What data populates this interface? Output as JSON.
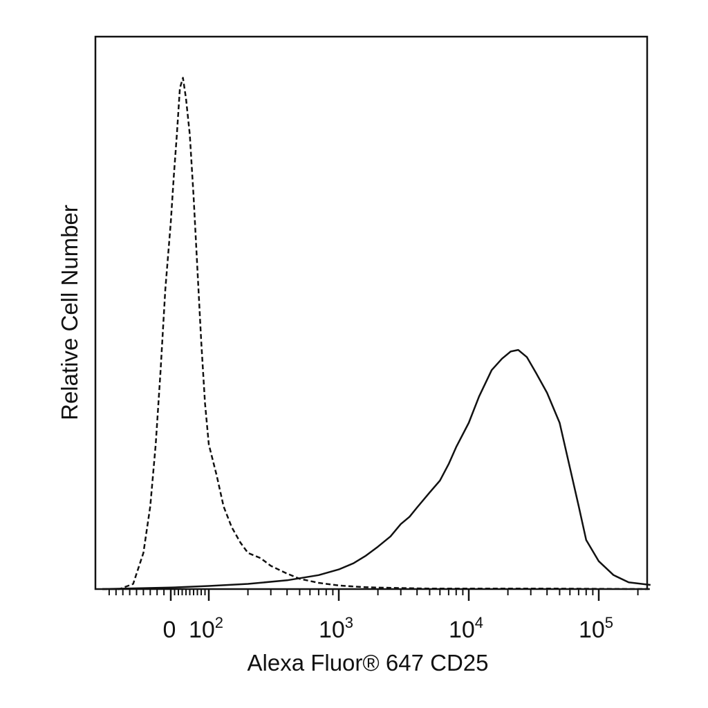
{
  "chart_data": {
    "type": "line",
    "title": "",
    "xlabel": "Alexa Fluor® 647 CD25",
    "ylabel": "Relative Cell Number",
    "x_scale": "biexponential (flow cytometry)",
    "x_tick_labels": [
      {
        "value": 0,
        "base": "0",
        "exp": ""
      },
      {
        "value": 100,
        "base": "10",
        "exp": "2"
      },
      {
        "value": 1000,
        "base": "10",
        "exp": "3"
      },
      {
        "value": 10000,
        "base": "10",
        "exp": "4"
      },
      {
        "value": 100000,
        "base": "10",
        "exp": "5"
      }
    ],
    "xlim": [
      -100,
      250000
    ],
    "ylim": [
      0,
      100
    ],
    "grid": false,
    "legend": "none",
    "series": [
      {
        "style": "dashed",
        "color": "#111111",
        "x": [
          -100,
          -75,
          -55,
          -40,
          -30,
          -22,
          -15,
          -8,
          0,
          8,
          16,
          24,
          32,
          40,
          50,
          60,
          70,
          80,
          90,
          100,
          115,
          130,
          150,
          175,
          200,
          250,
          300,
          400,
          500,
          700,
          1000,
          1500,
          2000,
          3000,
          5000,
          10000,
          50000,
          250000
        ],
        "y": [
          0,
          0,
          1,
          7,
          16,
          28,
          42,
          58,
          71,
          80,
          88,
          97,
          99,
          95,
          88,
          76,
          62,
          48,
          36,
          28,
          22,
          16,
          12,
          9,
          7,
          6,
          4.5,
          3,
          2,
          1.2,
          0.7,
          0.4,
          0.3,
          0.2,
          0.1,
          0.1,
          0.1,
          0
        ]
      },
      {
        "style": "solid",
        "color": "#111111",
        "x": [
          -100,
          0,
          100,
          200,
          400,
          700,
          1000,
          1300,
          1600,
          2000,
          2500,
          3000,
          3500,
          4000,
          5000,
          6000,
          7000,
          8000,
          10000,
          12000,
          15000,
          18000,
          21000,
          24000,
          28000,
          33000,
          40000,
          50000,
          60000,
          70000,
          80000,
          100000,
          130000,
          170000,
          250000
        ],
        "y": [
          0,
          0.3,
          0.6,
          1,
          1.7,
          2.7,
          3.8,
          5,
          6.4,
          8.2,
          10.2,
          12.6,
          14,
          15.8,
          18.7,
          21,
          24.2,
          27.5,
          32.2,
          37.3,
          42.4,
          44.6,
          46,
          46.3,
          44.9,
          41.8,
          38,
          32.2,
          23.5,
          16.1,
          9.5,
          5.4,
          2.7,
          1.3,
          0.8
        ]
      }
    ]
  }
}
